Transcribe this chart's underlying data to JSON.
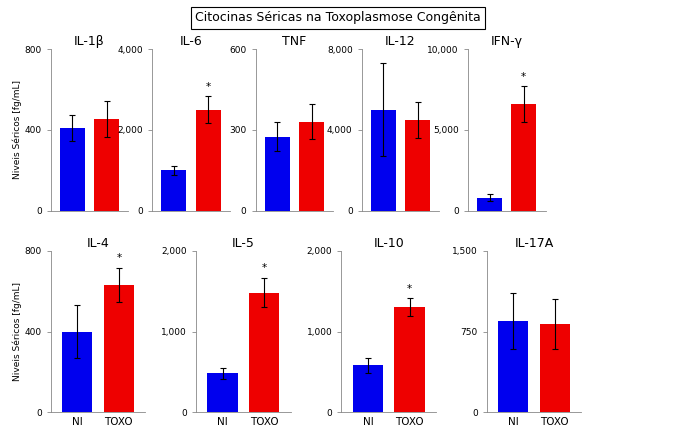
{
  "title": "Citocinas Séricas na Toxoplasmose Congênita",
  "row1": {
    "subplots": [
      {
        "label": "IL-1β",
        "NI_val": 410,
        "NI_err": 65,
        "TOXO_val": 455,
        "TOXO_err": 90,
        "ylim": [
          0,
          800
        ],
        "yticks": [
          0,
          400,
          800
        ],
        "significant": false,
        "sig_on": "TOXO"
      },
      {
        "label": "IL-6",
        "NI_val": 1000,
        "NI_err": 110,
        "TOXO_val": 2500,
        "TOXO_err": 330,
        "ylim": [
          0,
          4000
        ],
        "yticks": [
          0,
          2000,
          4000
        ],
        "significant": true,
        "sig_on": "TOXO"
      },
      {
        "label": "TNF",
        "NI_val": 275,
        "NI_err": 55,
        "TOXO_val": 330,
        "TOXO_err": 65,
        "ylim": [
          0,
          600
        ],
        "yticks": [
          0,
          300,
          600
        ],
        "significant": false,
        "sig_on": "TOXO"
      },
      {
        "label": "IL-12",
        "NI_val": 5000,
        "NI_err": 2300,
        "TOXO_val": 4500,
        "TOXO_err": 900,
        "ylim": [
          0,
          8000
        ],
        "yticks": [
          0,
          4000,
          8000
        ],
        "significant": false,
        "sig_on": "TOXO"
      },
      {
        "label": "IFN-γ",
        "NI_val": 800,
        "NI_err": 200,
        "TOXO_val": 6600,
        "TOXO_err": 1100,
        "ylim": [
          0,
          10000
        ],
        "yticks": [
          0,
          5000,
          10000
        ],
        "significant": true,
        "sig_on": "TOXO"
      }
    ]
  },
  "row2": {
    "subplots": [
      {
        "label": "IL-4",
        "NI_val": 400,
        "NI_err": 130,
        "TOXO_val": 630,
        "TOXO_err": 85,
        "ylim": [
          0,
          800
        ],
        "yticks": [
          0,
          400,
          800
        ],
        "significant": true,
        "sig_on": "TOXO"
      },
      {
        "label": "IL-5",
        "NI_val": 480,
        "NI_err": 70,
        "TOXO_val": 1480,
        "TOXO_err": 180,
        "ylim": [
          0,
          2000
        ],
        "yticks": [
          0,
          1000,
          2000
        ],
        "significant": true,
        "sig_on": "TOXO"
      },
      {
        "label": "IL-10",
        "NI_val": 580,
        "NI_err": 90,
        "TOXO_val": 1300,
        "TOXO_err": 110,
        "ylim": [
          0,
          2000
        ],
        "yticks": [
          0,
          1000,
          2000
        ],
        "significant": true,
        "sig_on": "TOXO"
      },
      {
        "label": "IL-17A",
        "NI_val": 850,
        "NI_err": 260,
        "TOXO_val": 820,
        "TOXO_err": 230,
        "ylim": [
          0,
          1500
        ],
        "yticks": [
          0,
          750,
          1500
        ],
        "significant": false,
        "sig_on": "TOXO"
      }
    ]
  },
  "bar_color_NI": "#0000ee",
  "bar_color_TOXO": "#ee0000",
  "ylabel": "Niveis Séricos [fg/mL]",
  "xlabel_labels": [
    "NI",
    "TOXO"
  ],
  "background_color": "#ffffff",
  "title_fontsize": 9,
  "sublabel_fontsize": 9,
  "tick_fontsize": 6.5,
  "xtick_fontsize": 7.5,
  "ylabel_fontsize": 6.5
}
